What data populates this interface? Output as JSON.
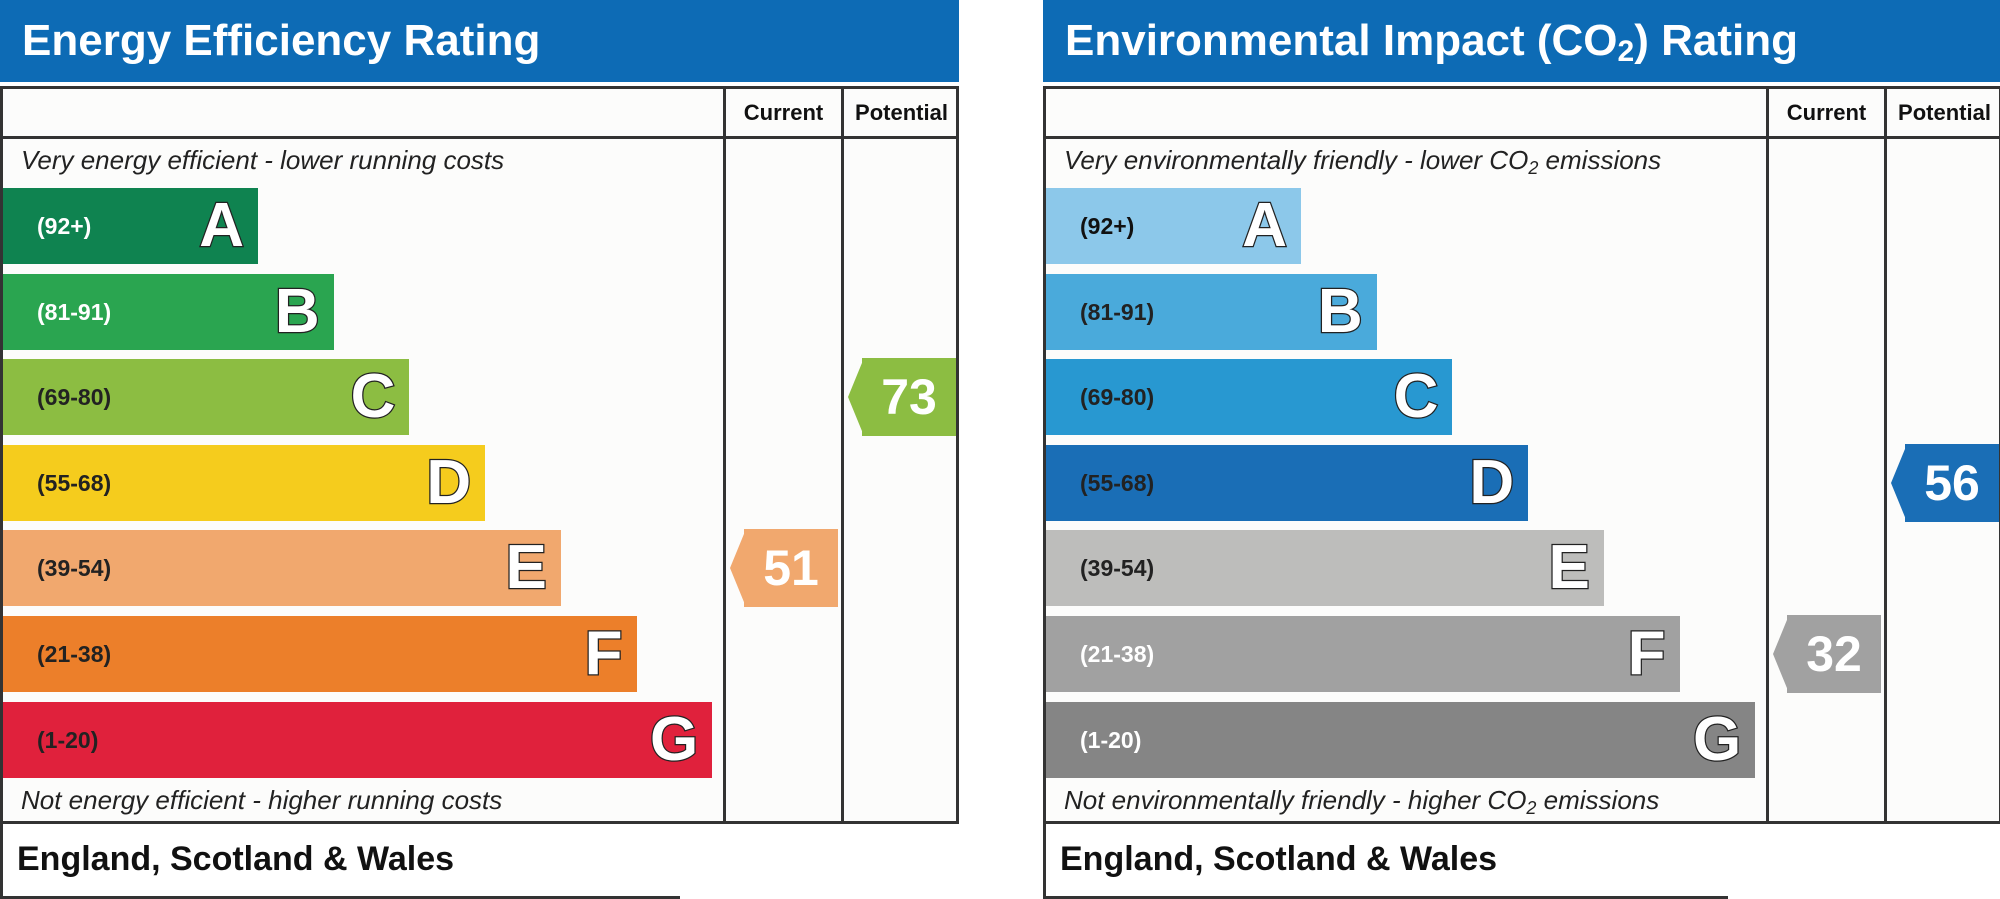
{
  "chart_data": [
    {
      "type": "bar",
      "title": "Energy Efficiency Rating",
      "columns": [
        "Current",
        "Potential"
      ],
      "top_caption": "Very energy efficient - lower running costs",
      "bottom_caption": "Not energy efficient - higher running costs",
      "region": "England, Scotland & Wales",
      "bands": [
        {
          "letter": "A",
          "range": "(92+)",
          "color": "#0f8350",
          "text_color": "#ffffff"
        },
        {
          "letter": "B",
          "range": "(81-91)",
          "color": "#2aa550",
          "text_color": "#ffffff"
        },
        {
          "letter": "C",
          "range": "(69-80)",
          "color": "#8cbd42",
          "text_color": "#222222"
        },
        {
          "letter": "D",
          "range": "(55-68)",
          "color": "#f5cc1d",
          "text_color": "#222222"
        },
        {
          "letter": "E",
          "range": "(39-54)",
          "color": "#f1a86e",
          "text_color": "#222222"
        },
        {
          "letter": "F",
          "range": "(21-38)",
          "color": "#ec7f2a",
          "text_color": "#222222"
        },
        {
          "letter": "G",
          "range": "(1-20)",
          "color": "#e0213c",
          "text_color": "#222222"
        }
      ],
      "current": {
        "value": 51,
        "color": "#f1a86e"
      },
      "potential": {
        "value": 73,
        "color": "#8cbd42"
      }
    },
    {
      "type": "bar",
      "title_parts": [
        "Environmental Impact (CO",
        "2",
        ") Rating"
      ],
      "columns": [
        "Current",
        "Potential"
      ],
      "top_caption_parts": [
        "Very environmentally friendly - lower CO",
        "2",
        " emissions"
      ],
      "bottom_caption_parts": [
        "Not environmentally friendly - higher CO",
        "2",
        " emissions"
      ],
      "region": "England, Scotland & Wales",
      "bands": [
        {
          "letter": "A",
          "range": "(92+)",
          "color": "#8cc8ea",
          "text_color": "#111111"
        },
        {
          "letter": "B",
          "range": "(81-91)",
          "color": "#4aaadb",
          "text_color": "#222222"
        },
        {
          "letter": "C",
          "range": "(69-80)",
          "color": "#2898d1",
          "text_color": "#222222"
        },
        {
          "letter": "D",
          "range": "(55-68)",
          "color": "#1a6eb6",
          "text_color": "#222222"
        },
        {
          "letter": "E",
          "range": "(39-54)",
          "color": "#bdbdbb",
          "text_color": "#222222"
        },
        {
          "letter": "F",
          "range": "(21-38)",
          "color": "#a1a1a1",
          "text_color": "#ffffff"
        },
        {
          "letter": "G",
          "range": "(1-20)",
          "color": "#858585",
          "text_color": "#ffffff"
        }
      ],
      "current": {
        "value": 32,
        "color": "#a1a1a1"
      },
      "potential": {
        "value": 56,
        "color": "#1a6eb6"
      }
    }
  ]
}
